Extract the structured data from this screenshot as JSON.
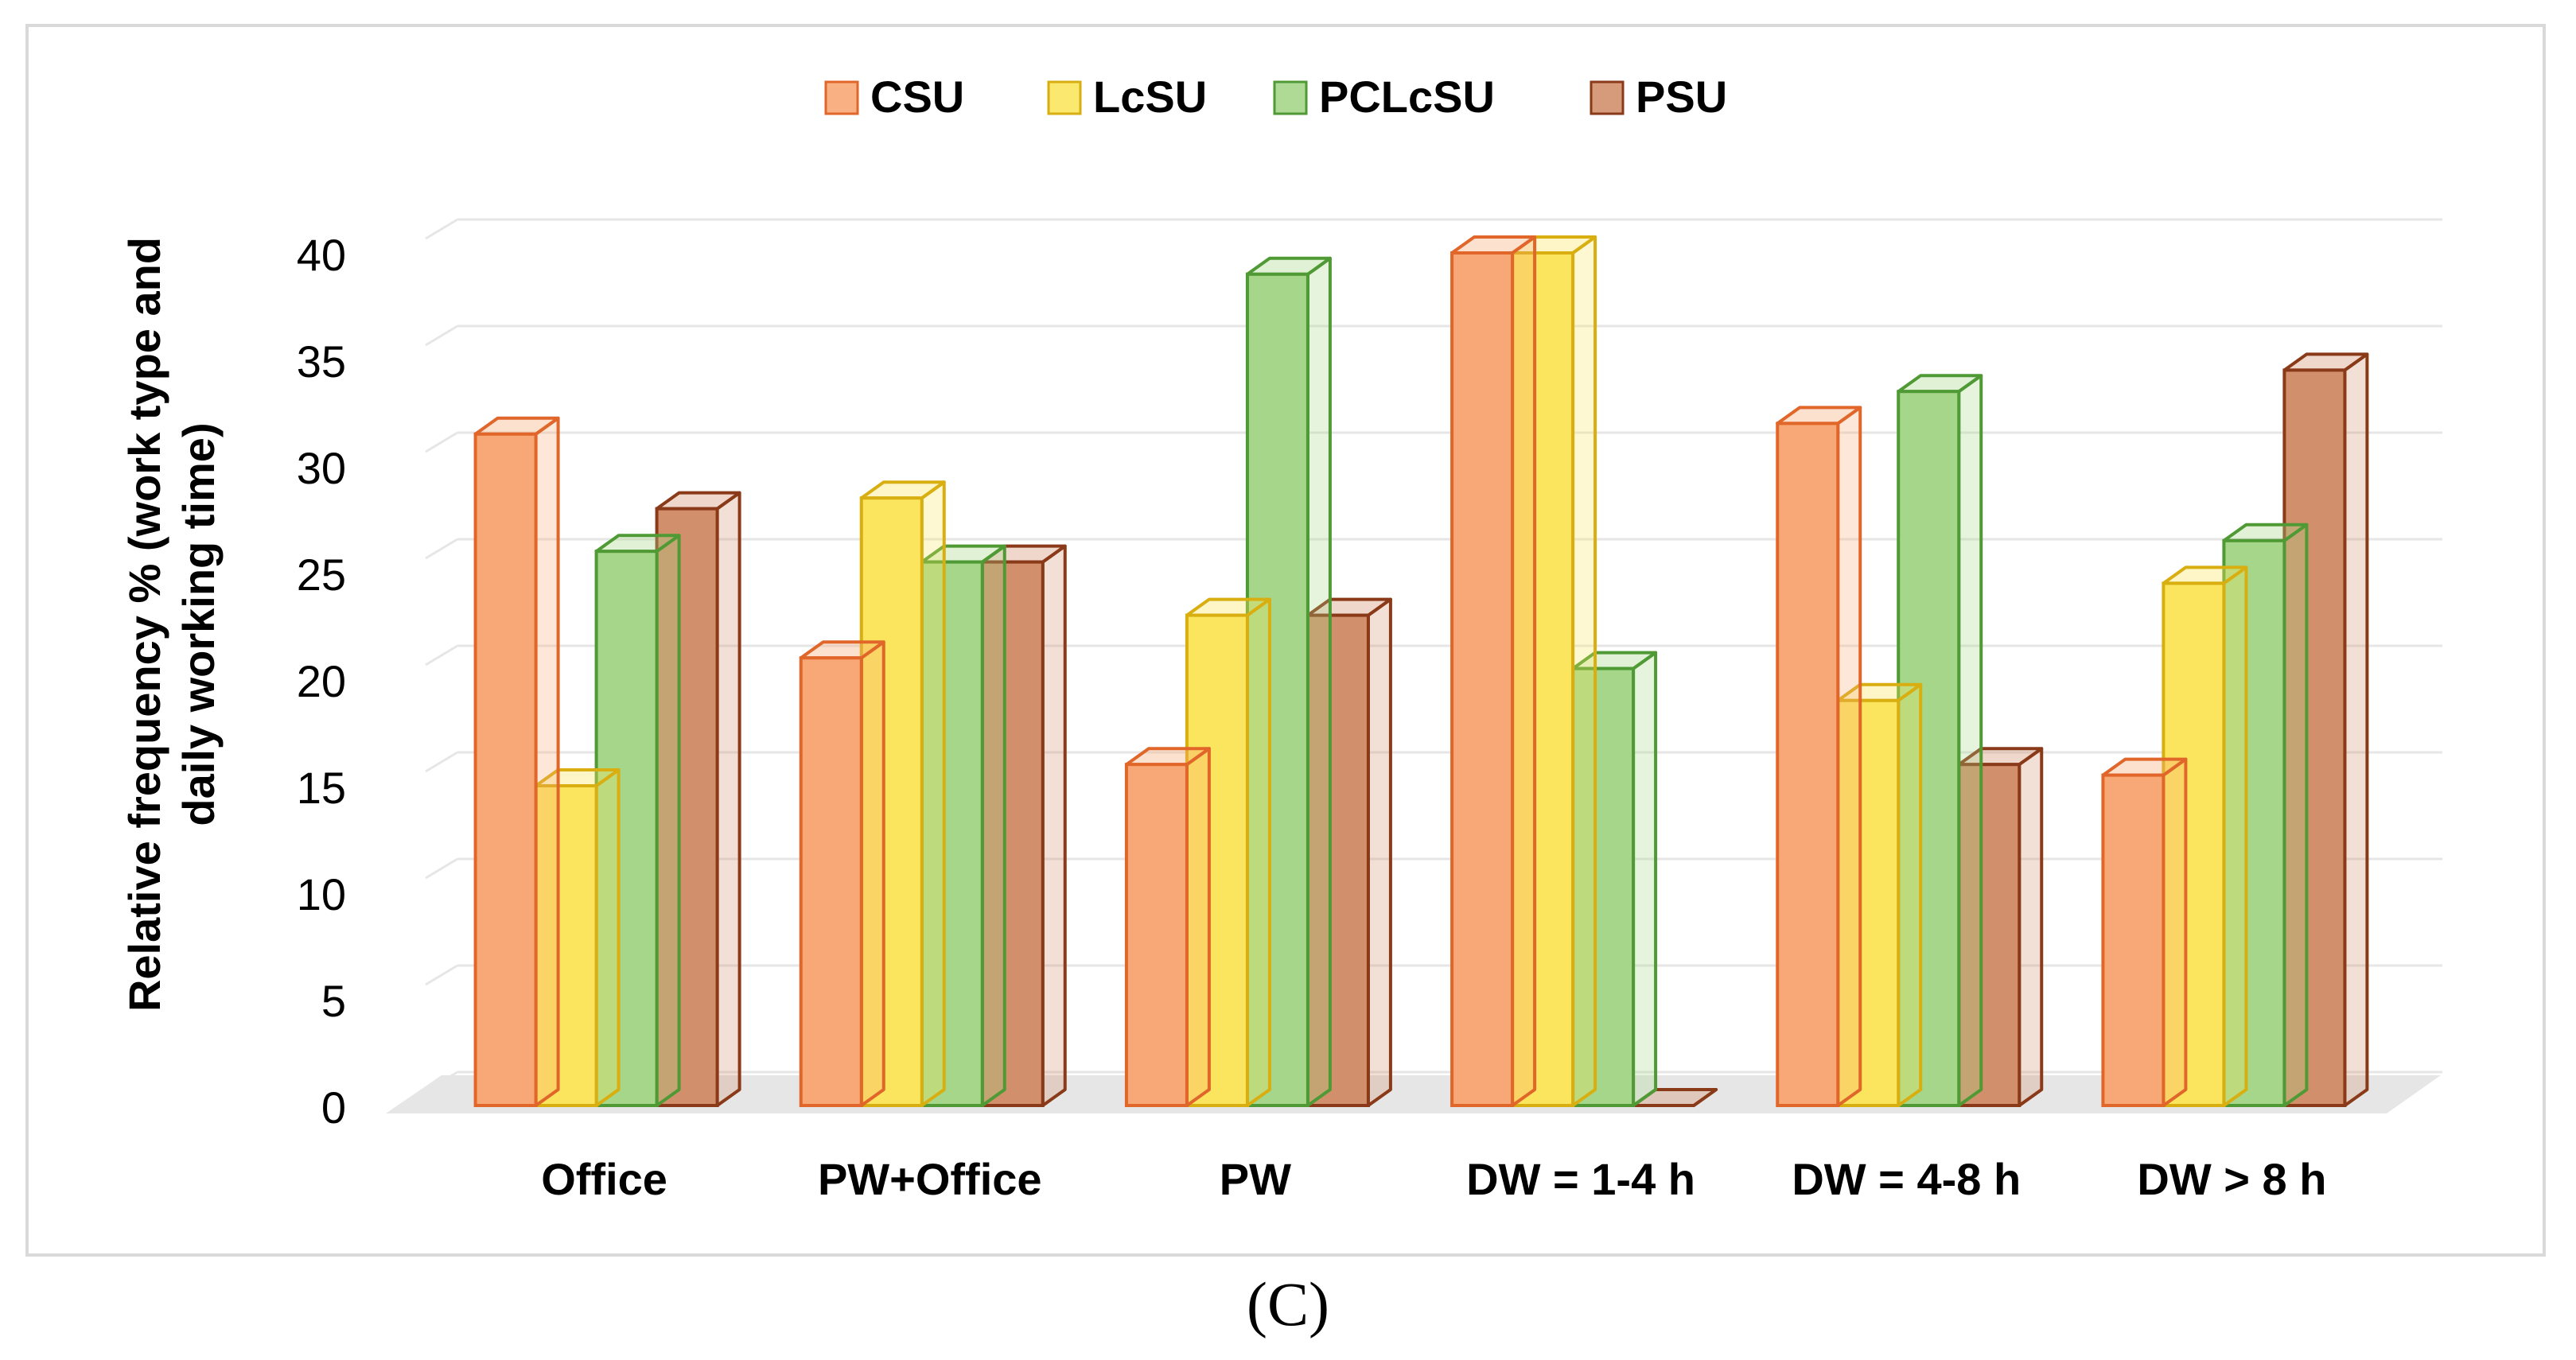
{
  "figure_label": "(C)",
  "chart_data": {
    "type": "bar",
    "style": "3d-clustered-column",
    "title": "",
    "xlabel": "",
    "ylabel": "Relative frequency % (work type and daily working time)",
    "ylabel_lines": [
      "Relative frequency % (work type and",
      "daily working time)"
    ],
    "ylim": [
      0,
      40
    ],
    "yticks": [
      0,
      5,
      10,
      15,
      20,
      25,
      30,
      35,
      40
    ],
    "grid": true,
    "legend_position": "top-center",
    "categories": [
      "Office",
      "PW+Office",
      "PW",
      "DW = 1-4 h",
      "DW = 4-8 h",
      "DW > 8 h"
    ],
    "series": [
      {
        "name": "CSU",
        "values": [
          31.5,
          21,
          16,
          40,
          32,
          15.5
        ],
        "color": "#f8a876",
        "edge": "#e0662a"
      },
      {
        "name": "LcSU",
        "values": [
          15,
          28.5,
          23,
          40,
          19,
          24.5
        ],
        "color": "#fbe55f",
        "edge": "#d8ae10"
      },
      {
        "name": "PCLcSU",
        "values": [
          26,
          25.5,
          39,
          20.5,
          33.5,
          26.5
        ],
        "color": "#a6d68a",
        "edge": "#4f9a34"
      },
      {
        "name": "PSU",
        "values": [
          28,
          25.5,
          23,
          0,
          16,
          34.5
        ],
        "color": "#d1906b",
        "edge": "#8a3a18"
      }
    ]
  }
}
